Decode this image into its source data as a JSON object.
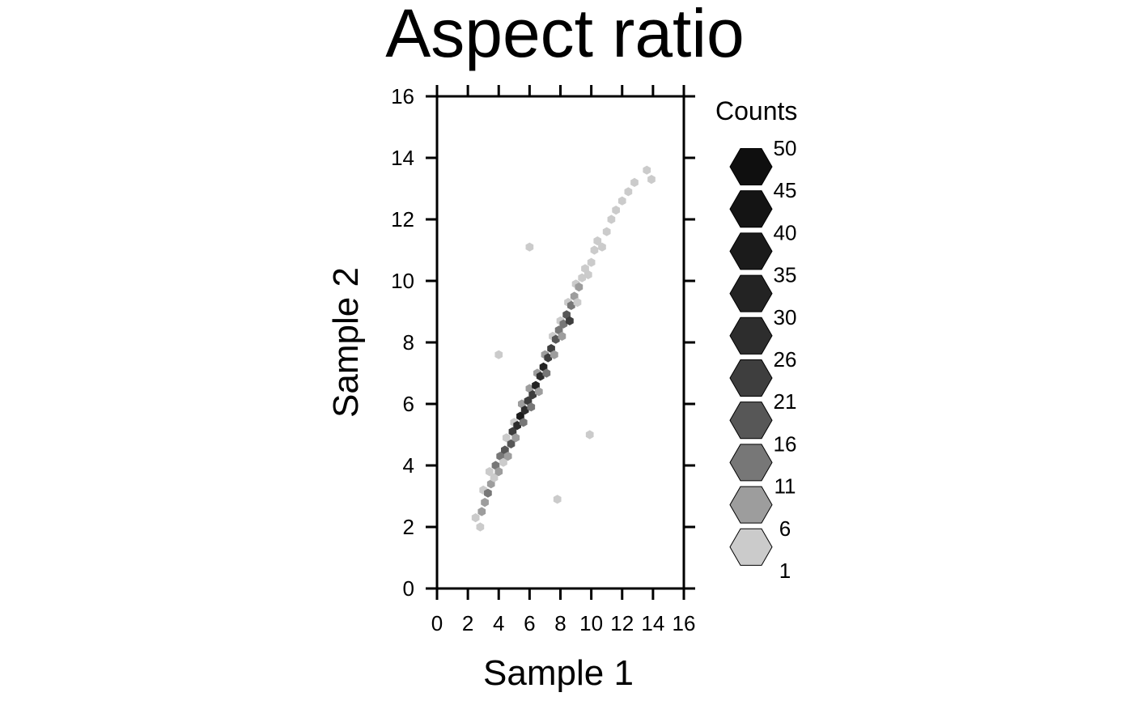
{
  "chart_data": {
    "type": "hexbin",
    "title": "Aspect ratio",
    "xlabel": "Sample 1",
    "ylabel": "Sample 2",
    "xlim": [
      0,
      16
    ],
    "ylim": [
      0,
      16
    ],
    "x_ticks": [
      0,
      2,
      4,
      6,
      8,
      10,
      12,
      14,
      16
    ],
    "y_ticks": [
      0,
      2,
      4,
      6,
      8,
      10,
      12,
      14,
      16
    ],
    "legend": {
      "title": "Counts",
      "levels": [
        "50",
        "45",
        "40",
        "35",
        "30",
        "26",
        "21",
        "16",
        "11",
        "6",
        "1"
      ],
      "colors": [
        "#0f0f0f",
        "#141414",
        "#1b1b1b",
        "#232323",
        "#2d2d2d",
        "#3e3e3e",
        "#575757",
        "#777777",
        "#9d9d9d",
        "#cbcbcb"
      ]
    },
    "hexbins": [
      {
        "x": 2.5,
        "y": 2.3,
        "count": 3
      },
      {
        "x": 2.8,
        "y": 2.0,
        "count": 2
      },
      {
        "x": 2.9,
        "y": 2.5,
        "count": 8
      },
      {
        "x": 3.1,
        "y": 2.8,
        "count": 10
      },
      {
        "x": 3.0,
        "y": 3.2,
        "count": 4
      },
      {
        "x": 3.3,
        "y": 3.1,
        "count": 14
      },
      {
        "x": 3.5,
        "y": 3.4,
        "count": 9
      },
      {
        "x": 3.4,
        "y": 3.8,
        "count": 3
      },
      {
        "x": 3.7,
        "y": 3.6,
        "count": 6
      },
      {
        "x": 3.8,
        "y": 4.0,
        "count": 12
      },
      {
        "x": 4.0,
        "y": 3.8,
        "count": 7
      },
      {
        "x": 4.1,
        "y": 4.3,
        "count": 16
      },
      {
        "x": 4.3,
        "y": 4.1,
        "count": 4
      },
      {
        "x": 4.4,
        "y": 4.5,
        "count": 20
      },
      {
        "x": 4.6,
        "y": 4.3,
        "count": 8
      },
      {
        "x": 4.5,
        "y": 4.9,
        "count": 6
      },
      {
        "x": 4.8,
        "y": 4.7,
        "count": 18
      },
      {
        "x": 4.9,
        "y": 5.1,
        "count": 24
      },
      {
        "x": 5.1,
        "y": 4.9,
        "count": 10
      },
      {
        "x": 5.0,
        "y": 5.4,
        "count": 5
      },
      {
        "x": 5.2,
        "y": 5.3,
        "count": 28
      },
      {
        "x": 5.4,
        "y": 5.6,
        "count": 36
      },
      {
        "x": 5.6,
        "y": 5.4,
        "count": 14
      },
      {
        "x": 5.5,
        "y": 6.0,
        "count": 9
      },
      {
        "x": 5.7,
        "y": 5.8,
        "count": 30
      },
      {
        "x": 5.9,
        "y": 6.1,
        "count": 26
      },
      {
        "x": 6.1,
        "y": 5.9,
        "count": 12
      },
      {
        "x": 6.0,
        "y": 6.5,
        "count": 7
      },
      {
        "x": 6.2,
        "y": 6.3,
        "count": 22
      },
      {
        "x": 6.4,
        "y": 6.6,
        "count": 32
      },
      {
        "x": 6.6,
        "y": 6.4,
        "count": 10
      },
      {
        "x": 6.5,
        "y": 7.0,
        "count": 8
      },
      {
        "x": 6.7,
        "y": 6.9,
        "count": 28
      },
      {
        "x": 6.9,
        "y": 7.2,
        "count": 34
      },
      {
        "x": 7.1,
        "y": 7.0,
        "count": 12
      },
      {
        "x": 7.0,
        "y": 7.6,
        "count": 9
      },
      {
        "x": 7.2,
        "y": 7.5,
        "count": 26
      },
      {
        "x": 7.4,
        "y": 7.8,
        "count": 22
      },
      {
        "x": 7.6,
        "y": 7.6,
        "count": 9
      },
      {
        "x": 7.5,
        "y": 8.2,
        "count": 6
      },
      {
        "x": 7.7,
        "y": 8.1,
        "count": 20
      },
      {
        "x": 7.9,
        "y": 8.4,
        "count": 16
      },
      {
        "x": 8.1,
        "y": 8.2,
        "count": 7
      },
      {
        "x": 8.0,
        "y": 8.7,
        "count": 5
      },
      {
        "x": 8.2,
        "y": 8.6,
        "count": 14
      },
      {
        "x": 8.4,
        "y": 8.9,
        "count": 18
      },
      {
        "x": 8.6,
        "y": 8.7,
        "count": 22
      },
      {
        "x": 8.5,
        "y": 9.3,
        "count": 6
      },
      {
        "x": 8.7,
        "y": 9.2,
        "count": 12
      },
      {
        "x": 8.9,
        "y": 9.5,
        "count": 9
      },
      {
        "x": 9.1,
        "y": 9.3,
        "count": 4
      },
      {
        "x": 9.0,
        "y": 9.9,
        "count": 4
      },
      {
        "x": 9.2,
        "y": 9.8,
        "count": 8
      },
      {
        "x": 9.4,
        "y": 10.1,
        "count": 6
      },
      {
        "x": 9.6,
        "y": 10.4,
        "count": 5
      },
      {
        "x": 9.8,
        "y": 10.2,
        "count": 3
      },
      {
        "x": 10.0,
        "y": 10.6,
        "count": 4
      },
      {
        "x": 10.2,
        "y": 11.0,
        "count": 3
      },
      {
        "x": 10.4,
        "y": 11.3,
        "count": 2
      },
      {
        "x": 10.7,
        "y": 11.1,
        "count": 2
      },
      {
        "x": 11.0,
        "y": 11.6,
        "count": 2
      },
      {
        "x": 11.3,
        "y": 12.0,
        "count": 2
      },
      {
        "x": 11.6,
        "y": 12.3,
        "count": 1
      },
      {
        "x": 12.0,
        "y": 12.6,
        "count": 1
      },
      {
        "x": 12.4,
        "y": 12.9,
        "count": 1
      },
      {
        "x": 12.8,
        "y": 13.2,
        "count": 1
      },
      {
        "x": 13.6,
        "y": 13.6,
        "count": 1
      },
      {
        "x": 13.9,
        "y": 13.3,
        "count": 1
      },
      {
        "x": 6.0,
        "y": 11.1,
        "count": 1
      },
      {
        "x": 7.8,
        "y": 2.9,
        "count": 1
      },
      {
        "x": 9.9,
        "y": 5.0,
        "count": 1
      },
      {
        "x": 4.0,
        "y": 7.6,
        "count": 1
      }
    ]
  }
}
